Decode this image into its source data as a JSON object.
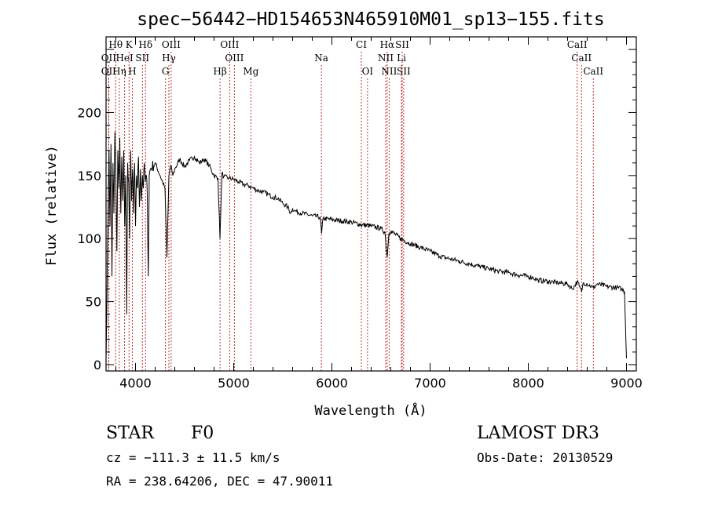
{
  "chart_data": {
    "type": "line",
    "title": "spec−56442−HD154653N465910M01_sp13−155.fits",
    "xlabel": "Wavelength (Å)",
    "ylabel": "Flux (relative)",
    "xlim": [
      3700,
      9100
    ],
    "ylim": [
      -5,
      260
    ],
    "xticks": [
      4000,
      5000,
      6000,
      7000,
      8000,
      9000
    ],
    "yticks": [
      0,
      50,
      100,
      150,
      200
    ],
    "series": [
      {
        "name": "flux",
        "x": [
          3700,
          3710,
          3720,
          3730,
          3740,
          3750,
          3760,
          3770,
          3780,
          3790,
          3800,
          3810,
          3820,
          3830,
          3840,
          3850,
          3860,
          3870,
          3880,
          3890,
          3900,
          3910,
          3920,
          3930,
          3940,
          3950,
          3960,
          3970,
          3980,
          3990,
          4000,
          4010,
          4020,
          4030,
          4040,
          4050,
          4060,
          4070,
          4080,
          4090,
          4100,
          4110,
          4120,
          4130,
          4140,
          4150,
          4200,
          4250,
          4300,
          4320,
          4340,
          4360,
          4380,
          4400,
          4450,
          4500,
          4550,
          4600,
          4650,
          4700,
          4750,
          4800,
          4840,
          4860,
          4880,
          4900,
          4950,
          5000,
          5050,
          5100,
          5150,
          5200,
          5250,
          5300,
          5350,
          5400,
          5450,
          5500,
          5550,
          5580,
          5600,
          5620,
          5700,
          5800,
          5880,
          5895,
          5910,
          6000,
          6100,
          6200,
          6300,
          6400,
          6500,
          6540,
          6563,
          6580,
          6600,
          6700,
          6800,
          6900,
          7000,
          7100,
          7200,
          7300,
          7400,
          7500,
          7600,
          7700,
          7800,
          7900,
          8000,
          8050,
          8100,
          8200,
          8300,
          8400,
          8450,
          8498,
          8520,
          8542,
          8560,
          8600,
          8662,
          8700,
          8800,
          8900,
          8950,
          8980,
          8990,
          9000
        ],
        "values": [
          5,
          60,
          120,
          170,
          110,
          175,
          70,
          160,
          120,
          185,
          150,
          90,
          170,
          140,
          180,
          120,
          165,
          130,
          170,
          110,
          150,
          40,
          160,
          145,
          100,
          170,
          130,
          155,
          120,
          160,
          110,
          150,
          140,
          165,
          125,
          155,
          130,
          150,
          140,
          160,
          145,
          150,
          135,
          70,
          150,
          155,
          160,
          150,
          140,
          85,
          150,
          158,
          150,
          155,
          163,
          157,
          162,
          165,
          160,
          163,
          158,
          150,
          148,
          100,
          152,
          149,
          148,
          147,
          145,
          143,
          142,
          140,
          138,
          137,
          135,
          133,
          132,
          128,
          125,
          120,
          124,
          122,
          120,
          118,
          117,
          104,
          116,
          115,
          114,
          113,
          111,
          110,
          108,
          105,
          85,
          104,
          106,
          100,
          96,
          93,
          90,
          86,
          84,
          82,
          80,
          78,
          76,
          74,
          73,
          71,
          70,
          69,
          67,
          66,
          65,
          64,
          60,
          66,
          62,
          58,
          65,
          64,
          61,
          64,
          62,
          61,
          60,
          58,
          30,
          5
        ]
      }
    ],
    "line_marks": [
      {
        "label": "Hθ",
        "wl": 3798,
        "row": 1
      },
      {
        "label": "K",
        "wl": 3934,
        "row": 1
      },
      {
        "label": "Hδ",
        "wl": 4102,
        "row": 1
      },
      {
        "label": "OIII",
        "wl": 4363,
        "row": 1
      },
      {
        "label": "OIII",
        "wl": 4959,
        "row": 1
      },
      {
        "label": "CI",
        "wl": 6300,
        "row": 1
      },
      {
        "label": "Hα",
        "wl": 6563,
        "row": 1
      },
      {
        "label": "SII",
        "wl": 6716,
        "row": 1
      },
      {
        "label": "CaII",
        "wl": 8498,
        "row": 1
      },
      {
        "label": "OII",
        "wl": 3727,
        "row": 2
      },
      {
        "label": "HeI",
        "wl": 3889,
        "row": 2
      },
      {
        "label": "SII",
        "wl": 4070,
        "row": 2
      },
      {
        "label": "Hγ",
        "wl": 4340,
        "row": 2
      },
      {
        "label": "OIII",
        "wl": 5007,
        "row": 2
      },
      {
        "label": "Na",
        "wl": 5893,
        "row": 2
      },
      {
        "label": "NII",
        "wl": 6548,
        "row": 2
      },
      {
        "label": "Li",
        "wl": 6708,
        "row": 2
      },
      {
        "label": "CaII",
        "wl": 8542,
        "row": 2
      },
      {
        "label": "OII",
        "wl": 3727,
        "row": 3
      },
      {
        "label": "Hη",
        "wl": 3835,
        "row": 3
      },
      {
        "label": "H",
        "wl": 3968,
        "row": 3
      },
      {
        "label": "G",
        "wl": 4305,
        "row": 3
      },
      {
        "label": "Hβ",
        "wl": 4861,
        "row": 3
      },
      {
        "label": "Mg",
        "wl": 5175,
        "row": 3
      },
      {
        "label": "OI",
        "wl": 6363,
        "row": 3
      },
      {
        "label": "NII",
        "wl": 6583,
        "row": 3
      },
      {
        "label": "SII",
        "wl": 6731,
        "row": 3
      },
      {
        "label": "CaII",
        "wl": 8662,
        "row": 3
      }
    ]
  },
  "info": {
    "class_label": "STAR",
    "subclass": "F0",
    "survey": "LAMOST DR3",
    "cz": "cz = −111.3 ± 11.5 km/s",
    "obs_date": "Obs-Date: 20130529",
    "coords": "RA = 238.64206, DEC =  47.90011"
  }
}
